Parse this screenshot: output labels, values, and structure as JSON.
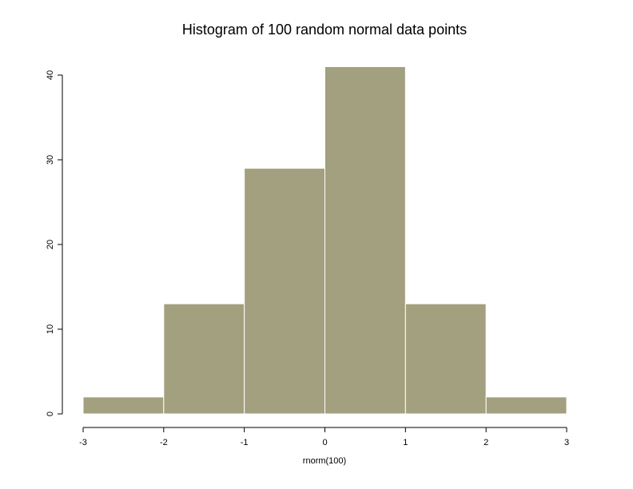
{
  "chart_data": {
    "type": "histogram",
    "title": "Histogram of 100 random normal data points",
    "xlabel": "rnorm(100)",
    "bins": [
      -3,
      -2,
      -1,
      0,
      1,
      2,
      3
    ],
    "values": [
      2,
      13,
      29,
      41,
      13,
      2
    ],
    "color": "#a2a07e",
    "xlim": [
      -3,
      3
    ],
    "xticks": [
      -3,
      -2,
      -1,
      0,
      1,
      2,
      3
    ],
    "ylim": [
      0,
      40
    ],
    "yticks": [
      0,
      10,
      20,
      30,
      40
    ],
    "grid": false
  }
}
